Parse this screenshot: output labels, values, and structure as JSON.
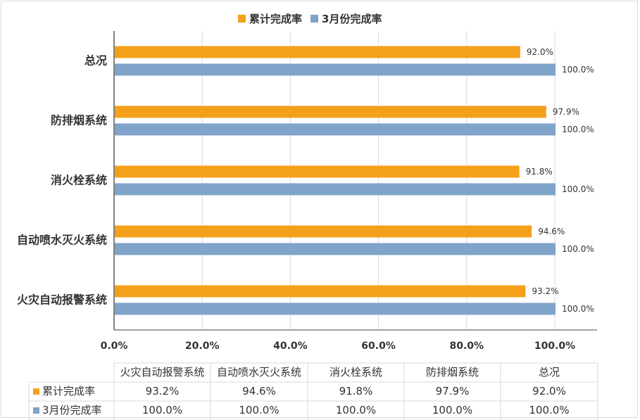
{
  "chart_data": {
    "type": "bar",
    "orientation": "horizontal",
    "categories": [
      "火灾自动报警系统",
      "自动喷水灭火系统",
      "消火栓系统",
      "防排烟系统",
      "总况"
    ],
    "series": [
      {
        "name": "累计完成率",
        "values": [
          93.2,
          94.6,
          91.8,
          97.9,
          92.0
        ],
        "labels": [
          "93.2%",
          "94.6%",
          "91.8%",
          "97.9%",
          "92.0%"
        ],
        "color": "#f5a01a"
      },
      {
        "name": "3月份完成率",
        "values": [
          100.0,
          100.0,
          100.0,
          100.0,
          100.0
        ],
        "labels": [
          "100.0%",
          "100.0%",
          "100.0%",
          "100.0%",
          "100.0%"
        ],
        "color": "#7fa3c9"
      }
    ],
    "xlim": [
      0,
      100
    ],
    "xticks": [
      "0.0%",
      "20.0%",
      "40.0%",
      "60.0%",
      "80.0%",
      "100.0%"
    ],
    "legend_position": "top",
    "grid": true,
    "data_table": true
  }
}
